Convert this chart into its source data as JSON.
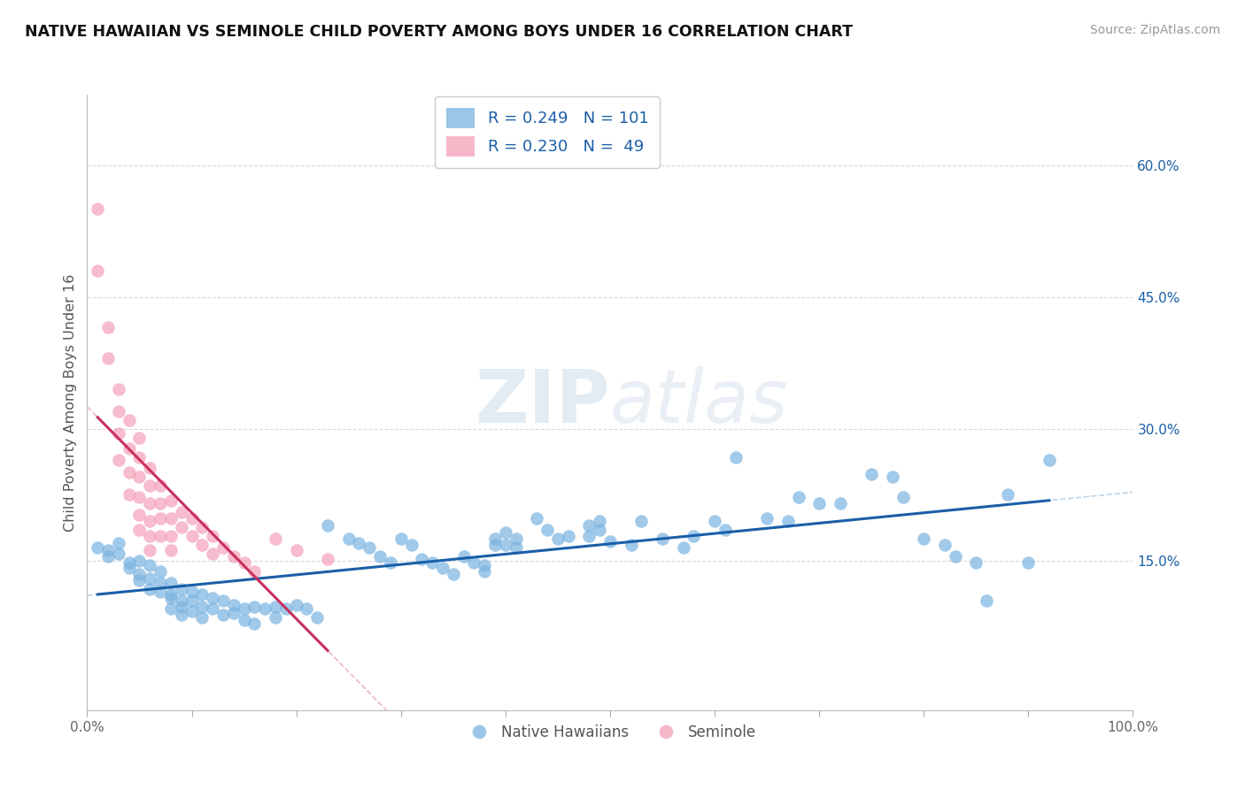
{
  "title": "NATIVE HAWAIIAN VS SEMINOLE CHILD POVERTY AMONG BOYS UNDER 16 CORRELATION CHART",
  "source": "Source: ZipAtlas.com",
  "ylabel": "Child Poverty Among Boys Under 16",
  "xlim": [
    0,
    1.0
  ],
  "ylim": [
    -0.02,
    0.68
  ],
  "yticks": [
    0.15,
    0.3,
    0.45,
    0.6
  ],
  "yticklabels": [
    "15.0%",
    "30.0%",
    "45.0%",
    "60.0%"
  ],
  "r_blue": 0.249,
  "r_pink": 0.23,
  "blue_color": "#7ab3e0",
  "pink_color": "#f4a0b8",
  "trend_blue_color": "#1a5fa8",
  "trend_pink_color": "#c83060",
  "dash_blue_color": "#90b8d8",
  "dash_pink_color": "#e08898",
  "watermark_color": "#dce8f0",
  "background_color": "#ffffff",
  "grid_color": "#d8d8d8",
  "blue_scatter": [
    [
      0.01,
      0.165
    ],
    [
      0.02,
      0.162
    ],
    [
      0.02,
      0.155
    ],
    [
      0.03,
      0.17
    ],
    [
      0.03,
      0.158
    ],
    [
      0.04,
      0.148
    ],
    [
      0.04,
      0.142
    ],
    [
      0.05,
      0.15
    ],
    [
      0.05,
      0.135
    ],
    [
      0.05,
      0.128
    ],
    [
      0.06,
      0.145
    ],
    [
      0.06,
      0.13
    ],
    [
      0.06,
      0.118
    ],
    [
      0.07,
      0.138
    ],
    [
      0.07,
      0.125
    ],
    [
      0.07,
      0.115
    ],
    [
      0.08,
      0.125
    ],
    [
      0.08,
      0.112
    ],
    [
      0.08,
      0.108
    ],
    [
      0.08,
      0.095
    ],
    [
      0.09,
      0.118
    ],
    [
      0.09,
      0.105
    ],
    [
      0.09,
      0.098
    ],
    [
      0.09,
      0.088
    ],
    [
      0.1,
      0.115
    ],
    [
      0.1,
      0.105
    ],
    [
      0.1,
      0.092
    ],
    [
      0.11,
      0.112
    ],
    [
      0.11,
      0.098
    ],
    [
      0.11,
      0.085
    ],
    [
      0.12,
      0.108
    ],
    [
      0.12,
      0.095
    ],
    [
      0.13,
      0.105
    ],
    [
      0.13,
      0.088
    ],
    [
      0.14,
      0.1
    ],
    [
      0.14,
      0.09
    ],
    [
      0.15,
      0.095
    ],
    [
      0.15,
      0.082
    ],
    [
      0.16,
      0.098
    ],
    [
      0.16,
      0.078
    ],
    [
      0.17,
      0.095
    ],
    [
      0.18,
      0.098
    ],
    [
      0.18,
      0.085
    ],
    [
      0.19,
      0.095
    ],
    [
      0.2,
      0.1
    ],
    [
      0.21,
      0.095
    ],
    [
      0.22,
      0.085
    ],
    [
      0.23,
      0.19
    ],
    [
      0.25,
      0.175
    ],
    [
      0.26,
      0.17
    ],
    [
      0.27,
      0.165
    ],
    [
      0.28,
      0.155
    ],
    [
      0.29,
      0.148
    ],
    [
      0.3,
      0.175
    ],
    [
      0.31,
      0.168
    ],
    [
      0.32,
      0.152
    ],
    [
      0.33,
      0.148
    ],
    [
      0.34,
      0.142
    ],
    [
      0.35,
      0.135
    ],
    [
      0.36,
      0.155
    ],
    [
      0.37,
      0.148
    ],
    [
      0.38,
      0.145
    ],
    [
      0.38,
      0.138
    ],
    [
      0.39,
      0.175
    ],
    [
      0.39,
      0.168
    ],
    [
      0.4,
      0.182
    ],
    [
      0.4,
      0.168
    ],
    [
      0.41,
      0.165
    ],
    [
      0.41,
      0.175
    ],
    [
      0.43,
      0.198
    ],
    [
      0.44,
      0.185
    ],
    [
      0.45,
      0.175
    ],
    [
      0.46,
      0.178
    ],
    [
      0.48,
      0.19
    ],
    [
      0.48,
      0.178
    ],
    [
      0.49,
      0.195
    ],
    [
      0.49,
      0.185
    ],
    [
      0.5,
      0.172
    ],
    [
      0.52,
      0.168
    ],
    [
      0.53,
      0.195
    ],
    [
      0.55,
      0.175
    ],
    [
      0.57,
      0.165
    ],
    [
      0.58,
      0.178
    ],
    [
      0.6,
      0.195
    ],
    [
      0.61,
      0.185
    ],
    [
      0.62,
      0.268
    ],
    [
      0.65,
      0.198
    ],
    [
      0.67,
      0.195
    ],
    [
      0.68,
      0.222
    ],
    [
      0.7,
      0.215
    ],
    [
      0.72,
      0.215
    ],
    [
      0.75,
      0.248
    ],
    [
      0.77,
      0.245
    ],
    [
      0.78,
      0.222
    ],
    [
      0.8,
      0.175
    ],
    [
      0.82,
      0.168
    ],
    [
      0.83,
      0.155
    ],
    [
      0.85,
      0.148
    ],
    [
      0.86,
      0.105
    ],
    [
      0.88,
      0.225
    ],
    [
      0.9,
      0.148
    ],
    [
      0.92,
      0.265
    ]
  ],
  "pink_scatter": [
    [
      0.01,
      0.55
    ],
    [
      0.01,
      0.48
    ],
    [
      0.02,
      0.415
    ],
    [
      0.02,
      0.38
    ],
    [
      0.03,
      0.345
    ],
    [
      0.03,
      0.32
    ],
    [
      0.03,
      0.295
    ],
    [
      0.03,
      0.265
    ],
    [
      0.04,
      0.31
    ],
    [
      0.04,
      0.278
    ],
    [
      0.04,
      0.25
    ],
    [
      0.04,
      0.225
    ],
    [
      0.05,
      0.29
    ],
    [
      0.05,
      0.268
    ],
    [
      0.05,
      0.245
    ],
    [
      0.05,
      0.222
    ],
    [
      0.05,
      0.202
    ],
    [
      0.05,
      0.185
    ],
    [
      0.06,
      0.255
    ],
    [
      0.06,
      0.235
    ],
    [
      0.06,
      0.215
    ],
    [
      0.06,
      0.195
    ],
    [
      0.06,
      0.178
    ],
    [
      0.06,
      0.162
    ],
    [
      0.07,
      0.235
    ],
    [
      0.07,
      0.215
    ],
    [
      0.07,
      0.198
    ],
    [
      0.07,
      0.178
    ],
    [
      0.08,
      0.218
    ],
    [
      0.08,
      0.198
    ],
    [
      0.08,
      0.178
    ],
    [
      0.08,
      0.162
    ],
    [
      0.09,
      0.205
    ],
    [
      0.09,
      0.188
    ],
    [
      0.1,
      0.198
    ],
    [
      0.1,
      0.178
    ],
    [
      0.11,
      0.188
    ],
    [
      0.11,
      0.168
    ],
    [
      0.12,
      0.178
    ],
    [
      0.12,
      0.158
    ],
    [
      0.13,
      0.165
    ],
    [
      0.14,
      0.155
    ],
    [
      0.15,
      0.148
    ],
    [
      0.16,
      0.138
    ],
    [
      0.18,
      0.175
    ],
    [
      0.2,
      0.162
    ],
    [
      0.23,
      0.152
    ]
  ]
}
